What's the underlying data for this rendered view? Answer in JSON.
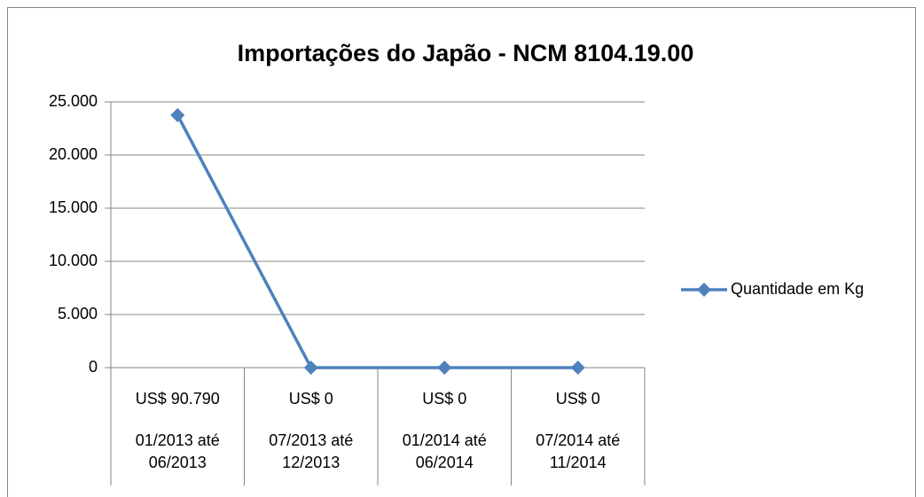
{
  "chart_data": {
    "type": "line",
    "title": "Importações do Japão - NCM 8104.19.00",
    "categories": [
      [
        "US$ 90.790",
        "01/2013 até 06/2013"
      ],
      [
        "US$ 0",
        "07/2013 até 12/2013"
      ],
      [
        "US$ 0",
        "01/2014 até 06/2014"
      ],
      [
        "US$ 0",
        "07/2014 até 11/2014"
      ]
    ],
    "series": [
      {
        "name": "Quantidade em Kg",
        "color": "#4f81bd",
        "values": [
          23750,
          0,
          0,
          0
        ]
      }
    ],
    "ylim": [
      0,
      25000
    ],
    "yticks": [
      0,
      {
        "value": 5000,
        "label": "5.000"
      },
      {
        "value": 10000,
        "label": "10.000"
      },
      {
        "value": 15000,
        "label": "15.000"
      },
      {
        "value": 20000,
        "label": "20.000"
      },
      {
        "value": 25000,
        "label": "25.000"
      }
    ],
    "grid": true,
    "legend": "right"
  }
}
